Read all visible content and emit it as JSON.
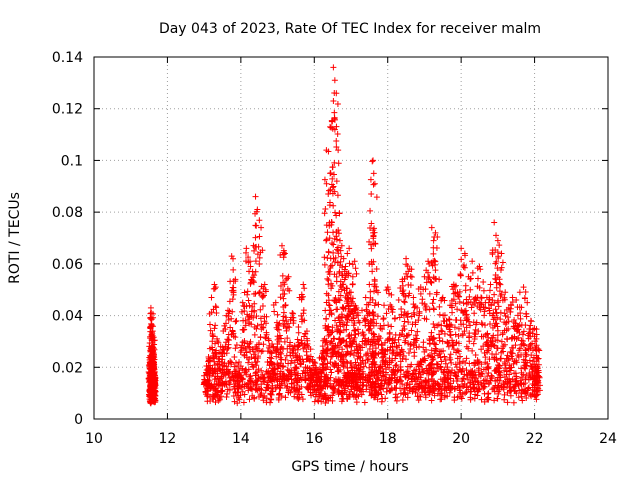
{
  "chart_data": {
    "type": "scatter",
    "title": "Day 043 of 2023, Rate Of TEC Index for receiver malm",
    "xlabel": "GPS time / hours",
    "ylabel": "ROTI / TECUs",
    "xlim": [
      10,
      24
    ],
    "ylim": [
      0,
      0.14
    ],
    "xticks": [
      "10",
      "12",
      "14",
      "16",
      "18",
      "20",
      "22",
      "24"
    ],
    "yticks": [
      "0",
      "0.02",
      "0.04",
      "0.06",
      "0.08",
      "0.1",
      "0.12",
      "0.14"
    ],
    "grid": true,
    "legend": "none",
    "marker": "plus",
    "color": "#ff0000",
    "series": [
      {
        "x": [
          11.55,
          11.56,
          11.57,
          11.58,
          11.59,
          11.6,
          11.61,
          11.62,
          11.55,
          11.57,
          11.58,
          11.6,
          11.61,
          11.56,
          11.59,
          11.62,
          11.57,
          11.58,
          11.6,
          11.61,
          13.05,
          13.12,
          13.2,
          13.28,
          13.35,
          13.45,
          13.55,
          13.65,
          13.75,
          13.85,
          13.95,
          14.05,
          14.15,
          14.25,
          14.32,
          14.4,
          14.45,
          14.55,
          14.65,
          14.75,
          14.85,
          14.95,
          15.05,
          15.12,
          15.2,
          15.3,
          15.4,
          15.5,
          15.6,
          15.7,
          15.8,
          15.9,
          16.0,
          16.1,
          16.2,
          16.28,
          16.33,
          16.38,
          16.43,
          16.48,
          16.52,
          16.56,
          16.6,
          16.65,
          16.7,
          16.75,
          16.8,
          16.85,
          16.9,
          16.95,
          17.0,
          17.05,
          17.1,
          17.15,
          17.2,
          17.3,
          17.4,
          17.5,
          17.55,
          17.6,
          17.62,
          17.65,
          17.7,
          17.8,
          17.9,
          18.0,
          18.1,
          18.2,
          18.3,
          18.4,
          18.5,
          18.6,
          18.7,
          18.8,
          18.9,
          19.0,
          19.1,
          19.2,
          19.25,
          19.3,
          19.4,
          19.5,
          19.6,
          19.7,
          19.8,
          19.9,
          20.0,
          20.1,
          20.2,
          20.3,
          20.4,
          20.5,
          20.6,
          20.7,
          20.8,
          20.9,
          20.95,
          21.0,
          21.1,
          21.2,
          21.3,
          21.4,
          21.5,
          21.6,
          21.7,
          21.8,
          21.9,
          22.0,
          22.05,
          22.1
        ],
        "y": [
          0.043,
          0.041,
          0.036,
          0.032,
          0.028,
          0.024,
          0.021,
          0.018,
          0.016,
          0.014,
          0.012,
          0.01,
          0.009,
          0.027,
          0.031,
          0.019,
          0.022,
          0.025,
          0.034,
          0.015,
          0.018,
          0.024,
          0.047,
          0.052,
          0.031,
          0.028,
          0.036,
          0.042,
          0.063,
          0.054,
          0.022,
          0.045,
          0.066,
          0.061,
          0.057,
          0.086,
          0.081,
          0.074,
          0.052,
          0.031,
          0.029,
          0.045,
          0.037,
          0.067,
          0.064,
          0.055,
          0.041,
          0.028,
          0.047,
          0.052,
          0.034,
          0.027,
          0.022,
          0.019,
          0.024,
          0.031,
          0.104,
          0.087,
          0.113,
          0.115,
          0.136,
          0.131,
          0.126,
          0.104,
          0.069,
          0.067,
          0.062,
          0.059,
          0.064,
          0.066,
          0.049,
          0.055,
          0.061,
          0.043,
          0.038,
          0.042,
          0.047,
          0.052,
          0.087,
          0.1,
          0.095,
          0.091,
          0.058,
          0.036,
          0.044,
          0.051,
          0.048,
          0.039,
          0.046,
          0.054,
          0.062,
          0.058,
          0.047,
          0.043,
          0.051,
          0.055,
          0.061,
          0.074,
          0.069,
          0.072,
          0.054,
          0.047,
          0.038,
          0.044,
          0.052,
          0.049,
          0.066,
          0.064,
          0.055,
          0.061,
          0.047,
          0.059,
          0.053,
          0.047,
          0.052,
          0.076,
          0.071,
          0.069,
          0.064,
          0.049,
          0.043,
          0.047,
          0.046,
          0.049,
          0.051,
          0.045,
          0.038,
          0.035,
          0.031,
          0.027
        ]
      }
    ]
  }
}
